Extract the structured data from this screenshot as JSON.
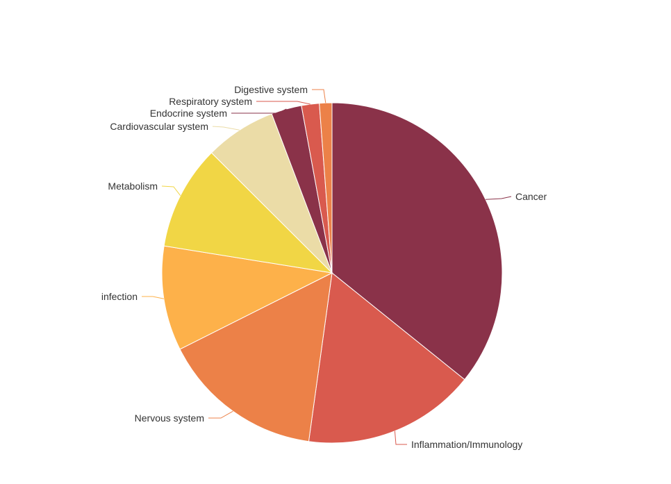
{
  "chart_data": {
    "type": "pie",
    "title": "",
    "legend": "none",
    "slices": [
      {
        "label": "Cancer",
        "value": 36.0,
        "color": "#8a3249"
      },
      {
        "label": "Inflammation/Immunology",
        "value": 16.5,
        "color": "#d95a4e"
      },
      {
        "label": "Nervous system",
        "value": 15.5,
        "color": "#ec8148"
      },
      {
        "label": "infection",
        "value": 10.0,
        "color": "#fdb14a"
      },
      {
        "label": "Metabolism",
        "value": 10.0,
        "color": "#f1d645"
      },
      {
        "label": "Cardiovascular system",
        "value": 6.8,
        "color": "#ebdca7"
      },
      {
        "label": "Endocrine system",
        "value": 2.9,
        "color": "#8a3249"
      },
      {
        "label": "Respiratory system",
        "value": 1.7,
        "color": "#d95a4e"
      },
      {
        "label": "Digestive system",
        "value": 1.2,
        "color": "#ec8148"
      }
    ]
  }
}
